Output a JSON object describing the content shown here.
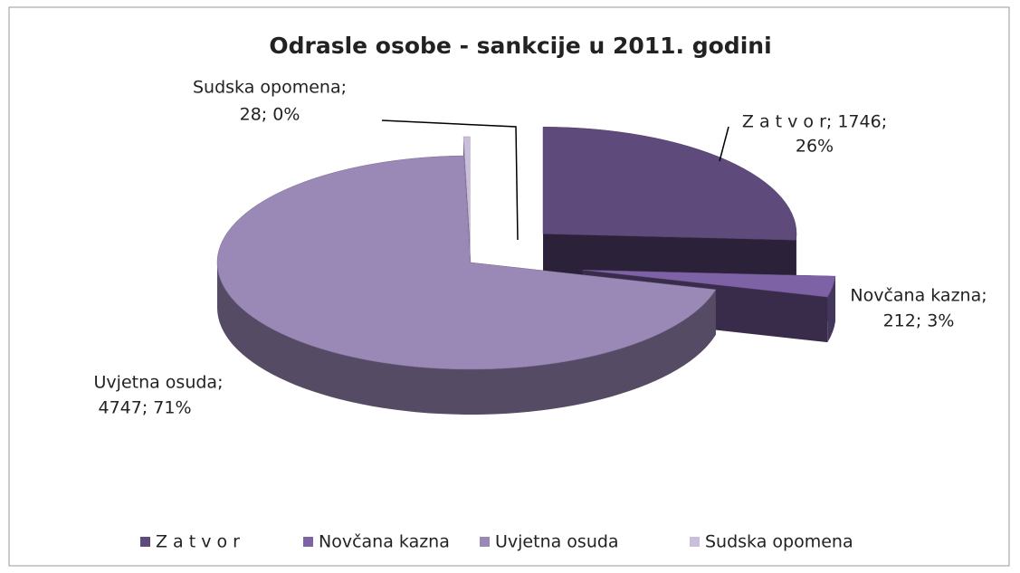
{
  "chart_data": {
    "type": "pie3d",
    "title": "Odrasle osobe - sankcije u 2011. godini",
    "categories": [
      "Z a t v o r",
      "Novčana kazna",
      "Uvjetna osuda",
      "Sudska opomena"
    ],
    "values": [
      1746,
      212,
      4747,
      28
    ],
    "value_labels": [
      [
        "Z a t v o r; 1746;",
        "26%"
      ],
      [
        "Novčana kazna;",
        "212; 3%"
      ],
      [
        "Uvjetna osuda;",
        "4747; 71%"
      ],
      [
        "Sudska opomena;",
        "28; 0%"
      ]
    ],
    "colors": [
      "#5f4a7c",
      "#7e62a6",
      "#9a88b6",
      "#c9bedb"
    ],
    "legend": "bottom"
  }
}
